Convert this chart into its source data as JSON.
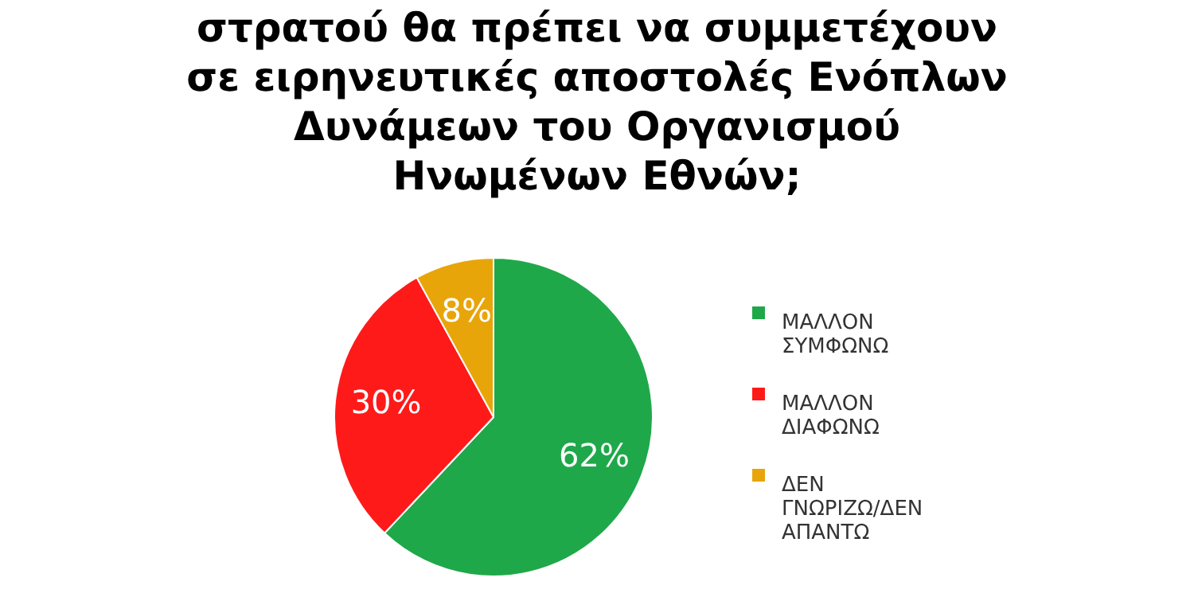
{
  "chart_data": {
    "type": "pie",
    "title": "στρατού θα πρέπει να συμμετέχουν\nσε ειρηνευτικές αποστολές Ενόπλων\nΔυνάμεων του Οργανισμού\nΗνωμένων Εθνών;",
    "categories": [
      "ΜΑΛΛΟΝ ΣΥΜΦΩΝΩ",
      "ΜΑΛΛΟΝ ΔΙΑΦΩΝΩ",
      "ΔΕΝ ΓΝΩΡΙΖΩ/ΔΕΝ ΑΠΑΝΤΩ"
    ],
    "values": [
      62,
      30,
      8
    ],
    "value_labels": [
      "62%",
      "30%",
      "8%"
    ],
    "colors": [
      "#1fa84a",
      "#ff1a1a",
      "#e8a50a"
    ],
    "legend": "right"
  }
}
